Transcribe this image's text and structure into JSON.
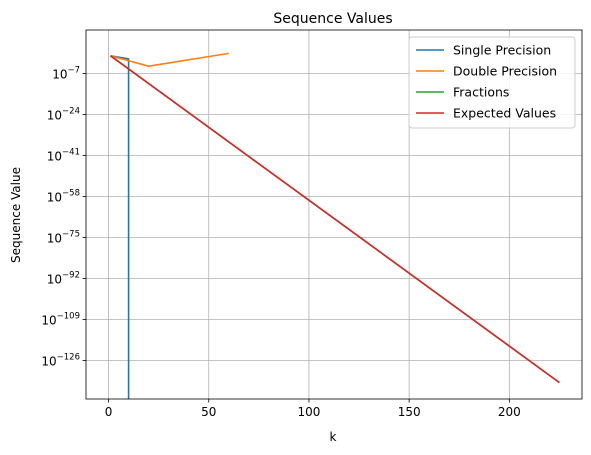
{
  "chart_data": {
    "type": "line",
    "title": "Sequence Values",
    "xlabel": "k",
    "ylabel": "Sequence Value",
    "xlim": [
      -11.25,
      236.25
    ],
    "ylog10_lim": [
      -142,
      11
    ],
    "y_scale": "log",
    "grid": true,
    "legend_position": "top-right",
    "x_ticks": [
      0,
      50,
      100,
      150,
      200
    ],
    "y_ticks": [
      {
        "base": "10",
        "exp": "−7",
        "value": -7
      },
      {
        "base": "10",
        "exp": "−24",
        "value": -24
      },
      {
        "base": "10",
        "exp": "−41",
        "value": -41
      },
      {
        "base": "10",
        "exp": "−58",
        "value": -58
      },
      {
        "base": "10",
        "exp": "−75",
        "value": -75
      },
      {
        "base": "10",
        "exp": "−92",
        "value": -92
      },
      {
        "base": "10",
        "exp": "−109",
        "value": -109
      },
      {
        "base": "10",
        "exp": "−126",
        "value": -126
      }
    ],
    "series": [
      {
        "name": "Single Precision",
        "color": "#1f77b4",
        "x": [
          1,
          10,
          10
        ],
        "log10_y": [
          0.3,
          -1.0,
          -142
        ]
      },
      {
        "name": "Double Precision",
        "color": "#ff7f0e",
        "x": [
          1,
          20,
          60
        ],
        "log10_y": [
          0.3,
          -4.0,
          1.3
        ]
      },
      {
        "name": "Fractions",
        "color": "#2ca02c",
        "x": [
          1,
          225
        ],
        "log10_y": [
          0.3,
          -135.2
        ]
      },
      {
        "name": "Expected Values",
        "color": "#d62728",
        "x": [
          1,
          225
        ],
        "log10_y": [
          0.3,
          -135.2
        ]
      }
    ]
  }
}
